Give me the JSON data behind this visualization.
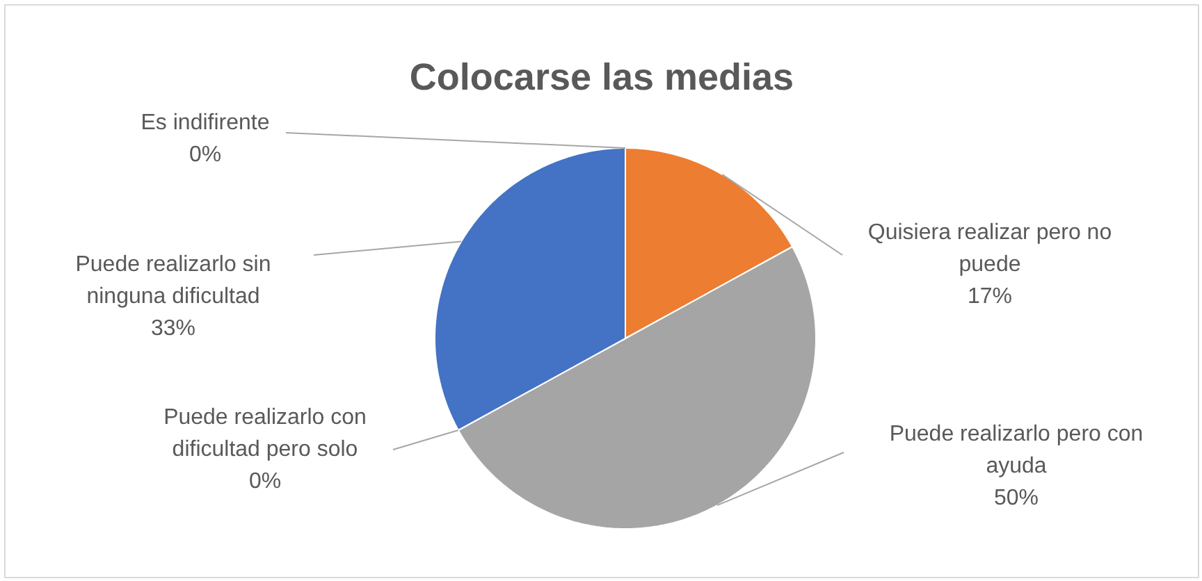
{
  "chart_data": {
    "type": "pie",
    "title": "Colocarse las medias",
    "categories": [
      "Quisiera realizar pero no puede",
      "Puede realizarlo pero con ayuda",
      "Puede realizarlo con dificultad pero solo",
      "Puede realizarlo sin ninguna dificultad",
      "Es indifirente"
    ],
    "values": [
      17,
      50,
      0,
      33,
      0
    ],
    "colors": [
      "#ed7d31",
      "#a5a5a5",
      "#ffc000",
      "#4472c4",
      "#5b9bd5"
    ],
    "value_labels": [
      "17%",
      "50%",
      "0%",
      "33%",
      "0%"
    ]
  }
}
